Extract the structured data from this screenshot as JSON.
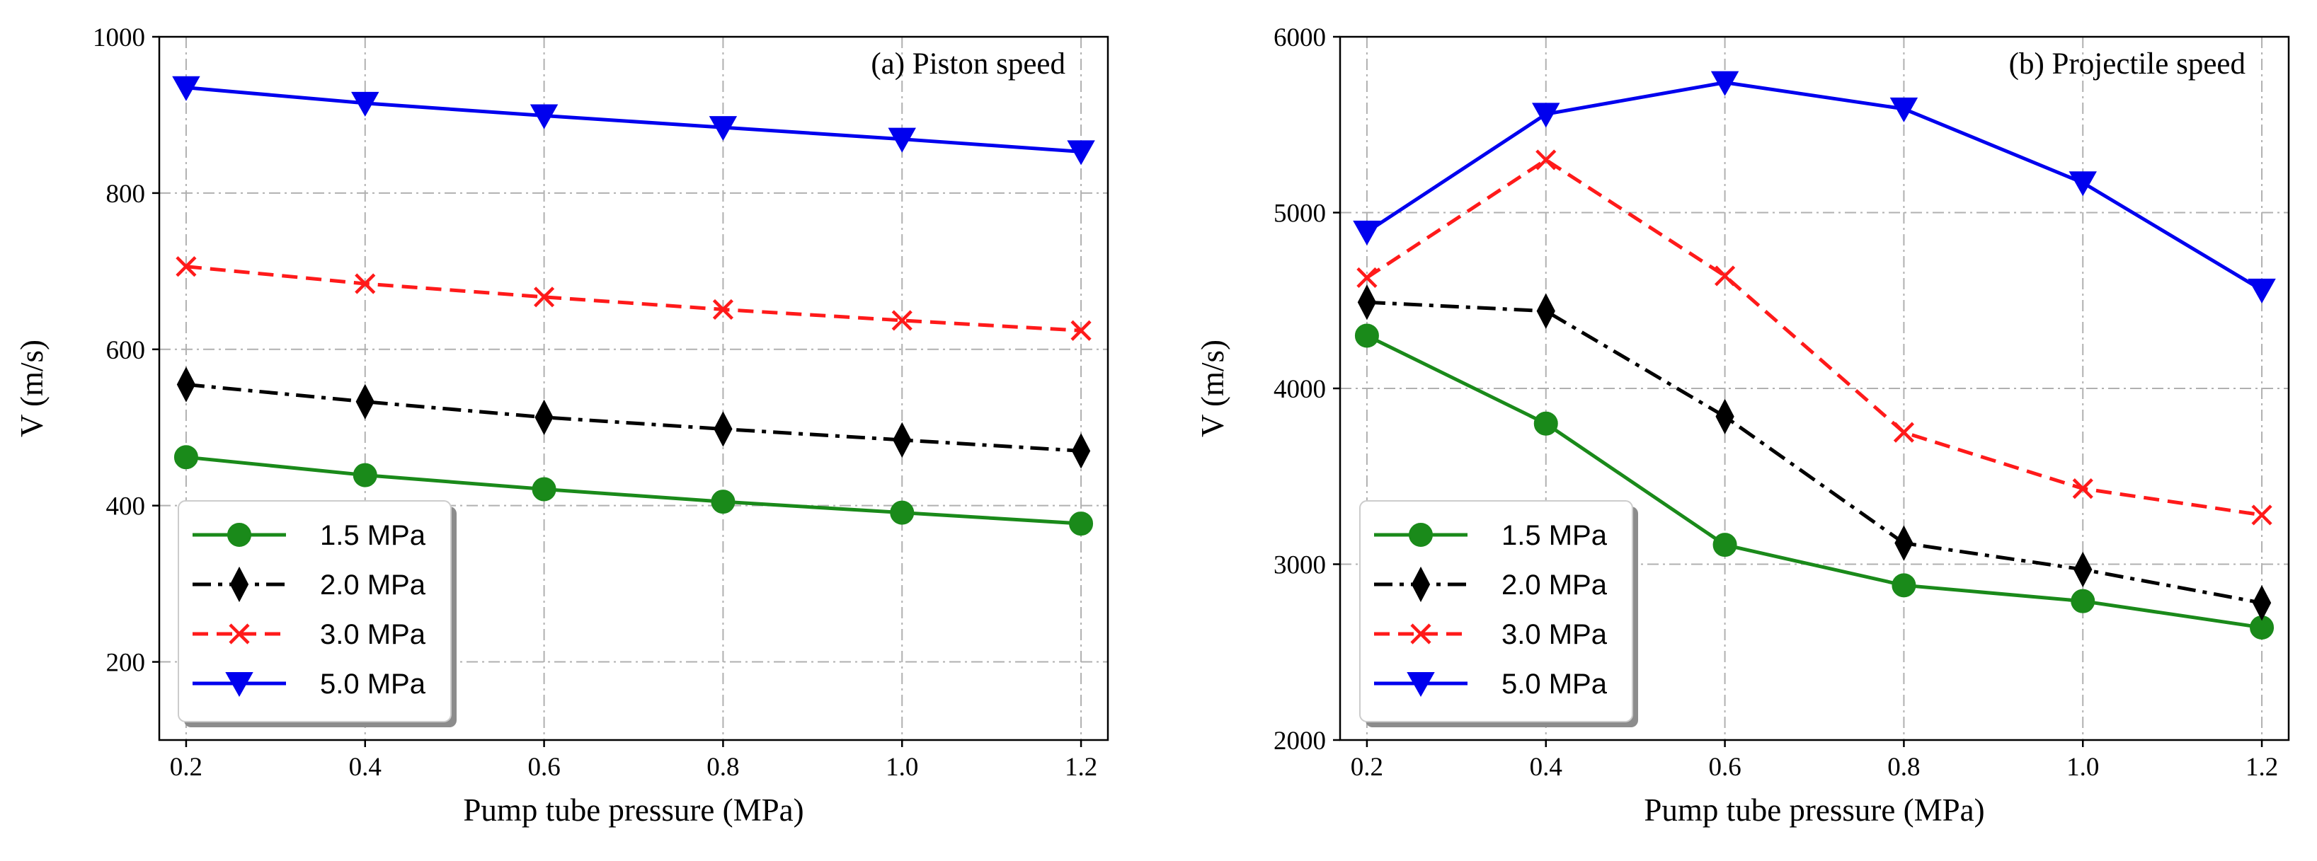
{
  "chart_data": [
    {
      "id": "a",
      "type": "line",
      "title": "(a) Piston speed",
      "xlabel": "Pump tube pressure (MPa)",
      "ylabel": "V (m/s)",
      "x": [
        0.2,
        0.4,
        0.6,
        0.8,
        1.0,
        1.2
      ],
      "xticks": [
        "0.2",
        "0.4",
        "0.6",
        "0.8",
        "1.0",
        "1.2"
      ],
      "xlim": [
        0.17,
        1.23
      ],
      "ylim": [
        100,
        1000
      ],
      "yticks": [
        "200",
        "400",
        "600",
        "800",
        "1000"
      ],
      "ytick_values": [
        200,
        400,
        600,
        800,
        1000
      ],
      "grid": true,
      "legend_position": "bottom-left",
      "series": [
        {
          "name": "1.5 MPa",
          "values": [
            462,
            439,
            421,
            405,
            391,
            377
          ],
          "color": "#1a8a1a",
          "marker": "circle",
          "dash": "solid"
        },
        {
          "name": "2.0 MPa",
          "values": [
            555,
            533,
            513,
            498,
            484,
            470
          ],
          "color": "#000000",
          "marker": "diamond",
          "dash": "dashdot"
        },
        {
          "name": "3.0 MPa",
          "values": [
            706,
            684,
            667,
            651,
            637,
            624
          ],
          "color": "#ff1a1a",
          "marker": "x",
          "dash": "dashed"
        },
        {
          "name": "5.0 MPa",
          "values": [
            935,
            915,
            899,
            884,
            869,
            853
          ],
          "color": "#0000ee",
          "marker": "triangle-down",
          "dash": "solid"
        }
      ]
    },
    {
      "id": "b",
      "type": "line",
      "title": "(b) Projectile speed",
      "xlabel": "Pump tube pressure (MPa)",
      "ylabel": "V (m/s)",
      "x": [
        0.2,
        0.4,
        0.6,
        0.8,
        1.0,
        1.2
      ],
      "xticks": [
        "0.2",
        "0.4",
        "0.6",
        "0.8",
        "1.0",
        "1.2"
      ],
      "xlim": [
        0.17,
        1.23
      ],
      "ylim": [
        2000,
        6000
      ],
      "yticks": [
        "2000",
        "3000",
        "4000",
        "5000",
        "6000"
      ],
      "ytick_values": [
        2000,
        3000,
        4000,
        5000,
        6000
      ],
      "grid": true,
      "legend_position": "bottom-left",
      "series": [
        {
          "name": "1.5 MPa",
          "values": [
            4300,
            3800,
            3110,
            2880,
            2790,
            2640
          ],
          "color": "#1a8a1a",
          "marker": "circle",
          "dash": "solid"
        },
        {
          "name": "2.0 MPa",
          "values": [
            4490,
            4440,
            3840,
            3120,
            2970,
            2780
          ],
          "color": "#000000",
          "marker": "diamond",
          "dash": "dashdot"
        },
        {
          "name": "3.0 MPa",
          "values": [
            4630,
            5300,
            4640,
            3750,
            3430,
            3280
          ],
          "color": "#ff1a1a",
          "marker": "x",
          "dash": "dashed"
        },
        {
          "name": "5.0 MPa",
          "values": [
            4890,
            5560,
            5740,
            5590,
            5170,
            4560
          ],
          "color": "#0000ee",
          "marker": "triangle-down",
          "dash": "solid"
        }
      ]
    }
  ]
}
